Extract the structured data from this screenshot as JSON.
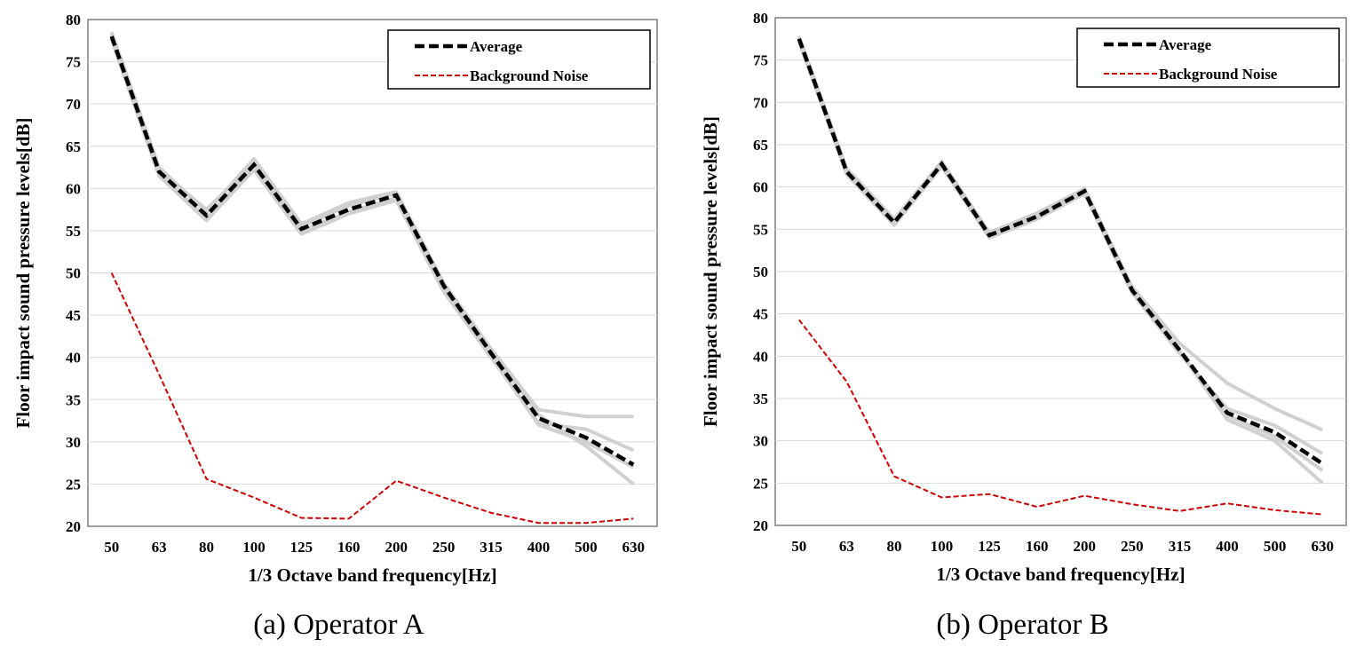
{
  "colors": {
    "average": "#000000",
    "background_noise": "#cc0000",
    "operator_runs": "#d0d0d0",
    "grid": "#d9d9d9"
  },
  "chart_data": [
    {
      "type": "line",
      "caption": "(a) Operator A",
      "xlabel": "1/3 Octave band frequency[Hz]",
      "ylabel": "Floor impact sound pressure levels[dB]",
      "categories": [
        "50",
        "63",
        "80",
        "100",
        "125",
        "160",
        "200",
        "250",
        "315",
        "400",
        "500",
        "630"
      ],
      "ylim": [
        20,
        80
      ],
      "yticks": [
        20,
        25,
        30,
        35,
        40,
        45,
        50,
        55,
        60,
        65,
        70,
        75,
        80
      ],
      "grid": true,
      "legend": "top-right",
      "series": [
        {
          "name": "Average",
          "style": "dashed-thick",
          "values": [
            78,
            62,
            56.8,
            62.8,
            55.2,
            57.5,
            59.2,
            48.5,
            40.5,
            32.8,
            30.5,
            27.3
          ]
        },
        {
          "name": "Background Noise",
          "style": "dashed-thin",
          "values": [
            50,
            38,
            25.6,
            23.4,
            21,
            20.9,
            25.4,
            23.4,
            21.6,
            20.4,
            20.4,
            20.9
          ]
        }
      ],
      "runs": [
        [
          78.5,
          62.5,
          57.2,
          63.5,
          55.8,
          58.3,
          59.6,
          48.8,
          41.0,
          33.8,
          33.0,
          33.0
        ],
        [
          77.6,
          61.5,
          56.2,
          62.2,
          54.6,
          57.0,
          58.6,
          47.8,
          40.0,
          32.2,
          31.5,
          29.0
        ],
        [
          78.2,
          62.2,
          57.5,
          63.0,
          55.5,
          58.0,
          59.4,
          48.3,
          40.8,
          33.2,
          29.5,
          25.0
        ],
        [
          77.8,
          61.8,
          56.5,
          62.6,
          55.0,
          57.2,
          58.9,
          48.0,
          40.3,
          32.0,
          30.0,
          27.0
        ]
      ]
    },
    {
      "type": "line",
      "caption": "(b) Operator B",
      "xlabel": "1/3 Octave band frequency[Hz]",
      "ylabel": "Floor impact sound pressure levels[dB]",
      "categories": [
        "50",
        "63",
        "80",
        "100",
        "125",
        "160",
        "200",
        "250",
        "315",
        "400",
        "500",
        "630"
      ],
      "ylim": [
        20,
        80
      ],
      "yticks": [
        20,
        25,
        30,
        35,
        40,
        45,
        50,
        55,
        60,
        65,
        70,
        75,
        80
      ],
      "grid": true,
      "legend": "top-right",
      "series": [
        {
          "name": "Average",
          "style": "dashed-thick",
          "values": [
            77.5,
            61.8,
            55.8,
            62.7,
            54.3,
            56.5,
            59.5,
            47.8,
            40.7,
            33.3,
            31,
            27.3
          ]
        },
        {
          "name": "Background Noise",
          "style": "dashed-thin",
          "values": [
            44.3,
            37,
            25.8,
            23.3,
            23.7,
            22.2,
            23.5,
            22.5,
            21.7,
            22.6,
            21.8,
            21.3
          ]
        }
      ],
      "runs": [
        [
          77.8,
          62.2,
          56.2,
          63.0,
          54.6,
          56.9,
          59.8,
          48.2,
          41.5,
          36.8,
          33.8,
          31.3
        ],
        [
          77.2,
          61.5,
          55.5,
          62.4,
          54.0,
          56.2,
          59.2,
          47.5,
          40.3,
          33.8,
          31.8,
          28.5
        ],
        [
          77.6,
          61.8,
          55.9,
          62.8,
          54.4,
          56.6,
          59.6,
          47.9,
          40.6,
          32.5,
          30.0,
          25.0
        ],
        [
          77.4,
          61.7,
          55.7,
          62.6,
          54.2,
          56.4,
          59.4,
          47.7,
          40.5,
          33.0,
          30.5,
          26.5
        ]
      ]
    }
  ]
}
